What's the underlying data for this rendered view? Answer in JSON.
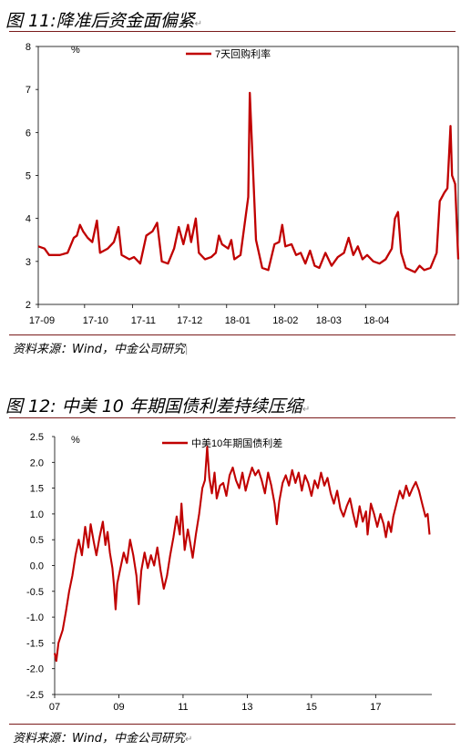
{
  "para_mark": "↵",
  "figure11": {
    "title": "图 11:降准后资金面偏紧",
    "source": "资料来源：Wind，中金公司研究",
    "chart_data": {
      "type": "line",
      "title": "",
      "unit": "%",
      "ylim": [
        2,
        8
      ],
      "yticks": [
        "2",
        "3",
        "4",
        "5",
        "6",
        "7",
        "8"
      ],
      "xticks": [
        "17-09",
        "17-10",
        "17-11",
        "17-12",
        "18-01",
        "18-02",
        "18-03",
        "18-04"
      ],
      "xlim": [
        "2017-09-01",
        "2018-05-31"
      ],
      "legend": "top-center",
      "series": [
        {
          "name": "7天回购利率",
          "color": "#c00000",
          "points": [
            [
              "2017-09-01",
              3.35
            ],
            [
              "2017-09-05",
              3.3
            ],
            [
              "2017-09-08",
              3.15
            ],
            [
              "2017-09-15",
              3.15
            ],
            [
              "2017-09-20",
              3.2
            ],
            [
              "2017-09-24",
              3.55
            ],
            [
              "2017-09-26",
              3.6
            ],
            [
              "2017-09-28",
              3.85
            ],
            [
              "2017-09-30",
              3.7
            ],
            [
              "2017-10-03",
              3.55
            ],
            [
              "2017-10-06",
              3.45
            ],
            [
              "2017-10-09",
              3.95
            ],
            [
              "2017-10-11",
              3.2
            ],
            [
              "2017-10-16",
              3.3
            ],
            [
              "2017-10-20",
              3.45
            ],
            [
              "2017-10-23",
              3.8
            ],
            [
              "2017-10-25",
              3.15
            ],
            [
              "2017-10-30",
              3.05
            ],
            [
              "2017-11-02",
              3.1
            ],
            [
              "2017-11-06",
              2.95
            ],
            [
              "2017-11-10",
              3.6
            ],
            [
              "2017-11-14",
              3.7
            ],
            [
              "2017-11-17",
              3.9
            ],
            [
              "2017-11-20",
              3.0
            ],
            [
              "2017-11-24",
              2.95
            ],
            [
              "2017-11-28",
              3.3
            ],
            [
              "2017-12-01",
              3.8
            ],
            [
              "2017-12-04",
              3.4
            ],
            [
              "2017-12-07",
              3.85
            ],
            [
              "2017-12-09",
              3.45
            ],
            [
              "2017-12-12",
              4.0
            ],
            [
              "2017-12-14",
              3.2
            ],
            [
              "2017-12-18",
              3.05
            ],
            [
              "2017-12-22",
              3.1
            ],
            [
              "2017-12-25",
              3.2
            ],
            [
              "2017-12-27",
              3.6
            ],
            [
              "2017-12-29",
              3.4
            ],
            [
              "2018-01-02",
              3.3
            ],
            [
              "2018-01-04",
              3.5
            ],
            [
              "2018-01-06",
              3.05
            ],
            [
              "2018-01-10",
              3.15
            ],
            [
              "2018-01-15",
              4.5
            ],
            [
              "2018-01-16",
              6.92
            ],
            [
              "2018-01-18",
              5.2
            ],
            [
              "2018-01-20",
              3.5
            ],
            [
              "2018-01-24",
              2.85
            ],
            [
              "2018-01-28",
              2.8
            ],
            [
              "2018-02-01",
              3.4
            ],
            [
              "2018-02-04",
              3.45
            ],
            [
              "2018-02-06",
              3.85
            ],
            [
              "2018-02-08",
              3.35
            ],
            [
              "2018-02-12",
              3.4
            ],
            [
              "2018-02-15",
              3.15
            ],
            [
              "2018-02-18",
              3.2
            ],
            [
              "2018-02-21",
              2.95
            ],
            [
              "2018-02-24",
              3.25
            ],
            [
              "2018-02-27",
              2.9
            ],
            [
              "2018-03-02",
              2.85
            ],
            [
              "2018-03-06",
              3.2
            ],
            [
              "2018-03-10",
              2.9
            ],
            [
              "2018-03-14",
              3.1
            ],
            [
              "2018-03-18",
              3.2
            ],
            [
              "2018-03-21",
              3.55
            ],
            [
              "2018-03-24",
              3.15
            ],
            [
              "2018-03-27",
              3.35
            ],
            [
              "2018-03-30",
              3.05
            ],
            [
              "2018-04-02",
              3.15
            ],
            [
              "2018-04-06",
              3.0
            ],
            [
              "2018-04-10",
              2.95
            ],
            [
              "2018-04-14",
              3.05
            ],
            [
              "2018-04-18",
              3.3
            ],
            [
              "2018-04-20",
              4.0
            ],
            [
              "2018-04-22",
              4.15
            ],
            [
              "2018-04-24",
              3.2
            ],
            [
              "2018-04-27",
              2.85
            ],
            [
              "2018-04-30",
              2.8
            ],
            [
              "2018-05-03",
              2.75
            ],
            [
              "2018-05-06",
              2.9
            ],
            [
              "2018-05-09",
              2.8
            ],
            [
              "2018-05-13",
              2.85
            ],
            [
              "2018-05-17",
              3.2
            ],
            [
              "2018-05-19",
              4.4
            ],
            [
              "2018-05-22",
              4.6
            ],
            [
              "2018-05-24",
              4.7
            ],
            [
              "2018-05-26",
              6.15
            ],
            [
              "2018-05-27",
              5.0
            ],
            [
              "2018-05-29",
              4.8
            ],
            [
              "2018-05-31",
              3.05
            ]
          ]
        }
      ]
    }
  },
  "figure12": {
    "title": "图 12:  中美 10 年期国债利差持续压缩",
    "source": "资料来源：Wind，中金公司研究",
    "chart_data": {
      "type": "line",
      "title": "",
      "unit": "%",
      "ylim": [
        -2.5,
        2.5
      ],
      "yticks": [
        "2.5",
        "2.0",
        "1.5",
        "1.0",
        "0.5",
        "0.0",
        "-0.5",
        "-1.0",
        "-1.5",
        "-2.0",
        "-2.5"
      ],
      "xticks": [
        "07",
        "09",
        "11",
        "13",
        "15",
        "17"
      ],
      "xlim": [
        2007.0,
        2018.75
      ],
      "legend": "top-center",
      "series": [
        {
          "name": "中美10年期国债利差",
          "color": "#c00000",
          "points": [
            [
              2007.0,
              -1.7
            ],
            [
              2007.05,
              -1.85
            ],
            [
              2007.12,
              -1.5
            ],
            [
              2007.25,
              -1.25
            ],
            [
              2007.35,
              -0.9
            ],
            [
              2007.45,
              -0.5
            ],
            [
              2007.55,
              -0.2
            ],
            [
              2007.65,
              0.2
            ],
            [
              2007.75,
              0.5
            ],
            [
              2007.85,
              0.2
            ],
            [
              2007.95,
              0.75
            ],
            [
              2008.05,
              0.35
            ],
            [
              2008.12,
              0.8
            ],
            [
              2008.22,
              0.45
            ],
            [
              2008.3,
              0.2
            ],
            [
              2008.4,
              0.55
            ],
            [
              2008.5,
              0.85
            ],
            [
              2008.58,
              0.4
            ],
            [
              2008.65,
              0.65
            ],
            [
              2008.72,
              0.25
            ],
            [
              2008.8,
              -0.05
            ],
            [
              2008.85,
              -0.4
            ],
            [
              2008.9,
              -0.85
            ],
            [
              2008.95,
              -0.35
            ],
            [
              2009.05,
              -0.05
            ],
            [
              2009.15,
              0.25
            ],
            [
              2009.25,
              0.05
            ],
            [
              2009.35,
              0.5
            ],
            [
              2009.45,
              0.2
            ],
            [
              2009.55,
              -0.2
            ],
            [
              2009.62,
              -0.75
            ],
            [
              2009.7,
              -0.1
            ],
            [
              2009.8,
              0.25
            ],
            [
              2009.9,
              -0.05
            ],
            [
              2010.0,
              0.2
            ],
            [
              2010.1,
              0.0
            ],
            [
              2010.2,
              0.35
            ],
            [
              2010.3,
              -0.1
            ],
            [
              2010.4,
              -0.45
            ],
            [
              2010.5,
              -0.2
            ],
            [
              2010.6,
              0.2
            ],
            [
              2010.7,
              0.55
            ],
            [
              2010.8,
              0.95
            ],
            [
              2010.9,
              0.6
            ],
            [
              2010.95,
              1.2
            ],
            [
              2011.05,
              0.3
            ],
            [
              2011.15,
              0.7
            ],
            [
              2011.22,
              0.45
            ],
            [
              2011.3,
              0.15
            ],
            [
              2011.4,
              0.6
            ],
            [
              2011.5,
              1.0
            ],
            [
              2011.6,
              1.5
            ],
            [
              2011.68,
              1.65
            ],
            [
              2011.75,
              2.3
            ],
            [
              2011.82,
              1.7
            ],
            [
              2011.9,
              1.4
            ],
            [
              2011.98,
              1.8
            ],
            [
              2012.05,
              1.3
            ],
            [
              2012.15,
              1.55
            ],
            [
              2012.25,
              1.6
            ],
            [
              2012.35,
              1.35
            ],
            [
              2012.45,
              1.75
            ],
            [
              2012.55,
              1.9
            ],
            [
              2012.65,
              1.65
            ],
            [
              2012.75,
              1.5
            ],
            [
              2012.85,
              1.8
            ],
            [
              2012.95,
              1.45
            ],
            [
              2013.05,
              1.7
            ],
            [
              2013.15,
              1.9
            ],
            [
              2013.25,
              1.75
            ],
            [
              2013.35,
              1.85
            ],
            [
              2013.45,
              1.65
            ],
            [
              2013.55,
              1.4
            ],
            [
              2013.65,
              1.8
            ],
            [
              2013.75,
              1.55
            ],
            [
              2013.85,
              1.2
            ],
            [
              2013.92,
              0.8
            ],
            [
              2014.0,
              1.25
            ],
            [
              2014.1,
              1.6
            ],
            [
              2014.2,
              1.75
            ],
            [
              2014.3,
              1.55
            ],
            [
              2014.4,
              1.85
            ],
            [
              2014.5,
              1.6
            ],
            [
              2014.6,
              1.8
            ],
            [
              2014.7,
              1.45
            ],
            [
              2014.8,
              1.75
            ],
            [
              2014.9,
              1.6
            ],
            [
              2015.0,
              1.35
            ],
            [
              2015.1,
              1.65
            ],
            [
              2015.2,
              1.5
            ],
            [
              2015.3,
              1.8
            ],
            [
              2015.4,
              1.55
            ],
            [
              2015.5,
              1.7
            ],
            [
              2015.6,
              1.4
            ],
            [
              2015.7,
              1.2
            ],
            [
              2015.8,
              1.45
            ],
            [
              2015.9,
              1.1
            ],
            [
              2016.0,
              0.95
            ],
            [
              2016.1,
              1.15
            ],
            [
              2016.2,
              1.3
            ],
            [
              2016.3,
              1.0
            ],
            [
              2016.4,
              0.75
            ],
            [
              2016.5,
              1.15
            ],
            [
              2016.6,
              0.85
            ],
            [
              2016.7,
              1.05
            ],
            [
              2016.75,
              0.6
            ],
            [
              2016.85,
              1.2
            ],
            [
              2016.95,
              1.0
            ],
            [
              2017.05,
              0.75
            ],
            [
              2017.15,
              1.0
            ],
            [
              2017.25,
              0.8
            ],
            [
              2017.32,
              0.55
            ],
            [
              2017.4,
              0.85
            ],
            [
              2017.48,
              0.65
            ],
            [
              2017.55,
              0.95
            ],
            [
              2017.65,
              1.2
            ],
            [
              2017.75,
              1.45
            ],
            [
              2017.85,
              1.3
            ],
            [
              2017.95,
              1.55
            ],
            [
              2018.05,
              1.35
            ],
            [
              2018.15,
              1.5
            ],
            [
              2018.25,
              1.62
            ],
            [
              2018.35,
              1.45
            ],
            [
              2018.45,
              1.2
            ],
            [
              2018.55,
              0.95
            ],
            [
              2018.62,
              1.0
            ],
            [
              2018.68,
              0.6
            ]
          ]
        }
      ]
    }
  }
}
